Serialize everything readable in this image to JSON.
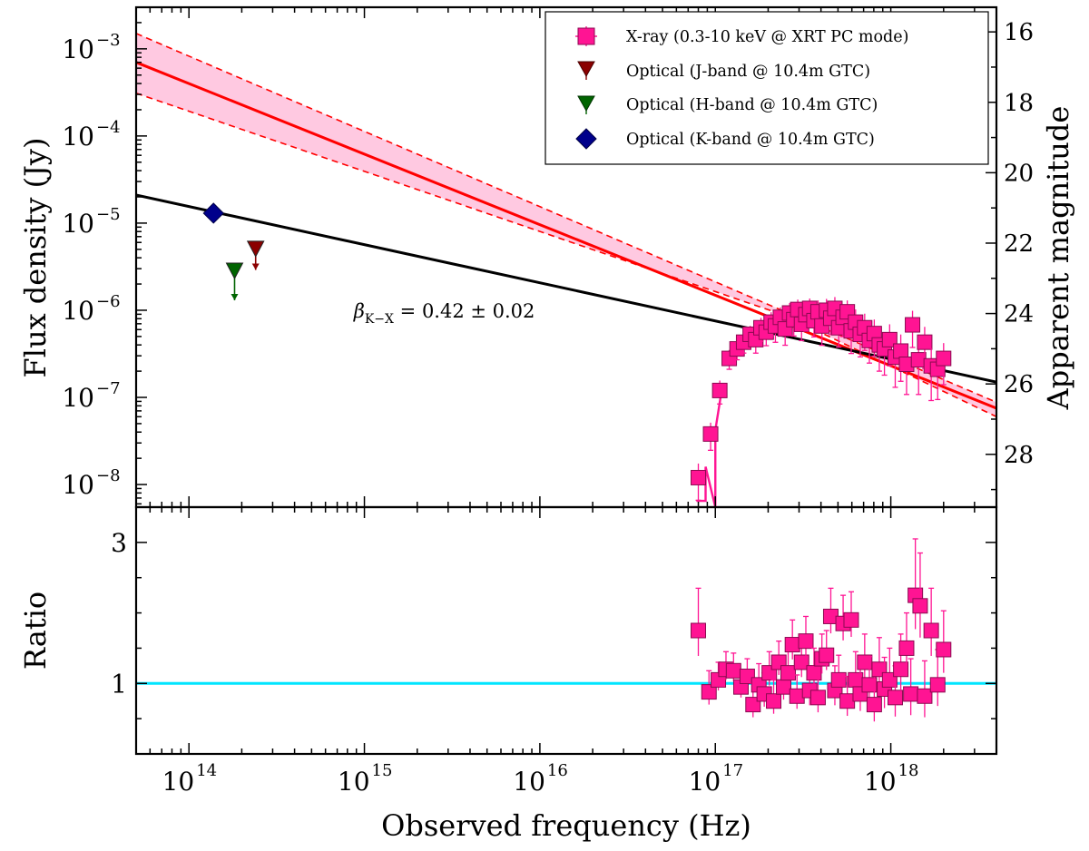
{
  "chart_data": [
    {
      "type": "scatter",
      "panel": "top",
      "xscale": "log",
      "yscale": "log",
      "xlim": [
        50000000000000.0,
        4e+18
      ],
      "ylim": [
        5.5e-09,
        0.003
      ],
      "ylabel": "Flux density (Jy)",
      "ylabel_right": "Apparent magnitude",
      "ylim_right": [
        15.3,
        29.5
      ],
      "xticks": [
        {
          "label": "10",
          "exp": "14"
        },
        {
          "label": "10",
          "exp": "15"
        },
        {
          "label": "10",
          "exp": "16"
        },
        {
          "label": "10",
          "exp": "17"
        },
        {
          "label": "10",
          "exp": "18"
        }
      ],
      "yticks": [
        {
          "value": 0.001,
          "label": "10",
          "exp": "−3"
        },
        {
          "value": 0.0001,
          "label": "10",
          "exp": "−4"
        },
        {
          "value": 1e-05,
          "label": "10",
          "exp": "−5"
        },
        {
          "value": 1e-06,
          "label": "10",
          "exp": "−6"
        },
        {
          "value": 1e-07,
          "label": "10",
          "exp": "−7"
        },
        {
          "value": 1e-08,
          "label": "10",
          "exp": "−8"
        }
      ],
      "yticks_right": [
        "16",
        "18",
        "20",
        "22",
        "24",
        "26",
        "28"
      ],
      "annotation": {
        "text_sym": "β",
        "text_sub": "K−X",
        "text_rest": " = 0.42 ± 0.02",
        "x": 900000000000000.0,
        "y": 1e-06
      },
      "legend": {
        "position": "upper right",
        "entries": [
          {
            "label": "X-ray (0.3-10 keV @ XRT PC mode)",
            "marker": "square",
            "color": "#ff1493"
          },
          {
            "label": "Optical (J-band @ 10.4m GTC)",
            "marker": "triangle-down",
            "color": "#8b0000"
          },
          {
            "label": "Optical (H-band @ 10.4m GTC)",
            "marker": "triangle-down",
            "color": "#006400"
          },
          {
            "label": "Optical (K-band @ 10.4m GTC)",
            "marker": "diamond",
            "color": "#00008b"
          }
        ]
      },
      "series": [
        {
          "name": "X-ray power-law fit",
          "kind": "line",
          "color": "#ff0000",
          "x": [
            50000000000000.0,
            4e+18
          ],
          "y": [
            0.0007,
            7.5e-08
          ]
        },
        {
          "name": "X-ray fit upper bound",
          "kind": "dashed",
          "color": "#ff0000",
          "x": [
            50000000000000.0,
            2.5e+17,
            4e+18
          ],
          "y": [
            0.0015,
            9.6e-07,
            8.8e-08
          ]
        },
        {
          "name": "X-ray fit lower bound",
          "kind": "dashed",
          "color": "#ff0000",
          "x": [
            50000000000000.0,
            2.5e+17,
            4e+18
          ],
          "y": [
            0.00031,
            8.7e-07,
            6e-08
          ]
        },
        {
          "name": "K-X power law",
          "kind": "line",
          "color": "#000000",
          "x": [
            50000000000000.0,
            4e+18
          ],
          "y": [
            2.1e-05,
            1.5e-07
          ]
        },
        {
          "name": "X-ray (0.3-10 keV @ XRT PC mode)",
          "kind": "points",
          "marker": "square",
          "color": "#ff1493",
          "x": [
            8e+16,
            9.4e+16,
            1.06e+17,
            1.2e+17,
            1.33e+17,
            1.45e+17,
            1.58e+17,
            1.7e+17,
            1.82e+17,
            1.95e+17,
            2.08e+17,
            2.2e+17,
            2.35e+17,
            2.5e+17,
            2.65e+17,
            2.8e+17,
            2.95e+17,
            3.1e+17,
            3.28e+17,
            3.45e+17,
            3.65e+17,
            3.85e+17,
            4.05e+17,
            4.3e+17,
            4.55e+17,
            4.8e+17,
            5.05e+17,
            5.35e+17,
            5.65e+17,
            5.95e+17,
            6.3e+17,
            6.7e+17,
            7.1e+17,
            7.55e+17,
            8.05e+17,
            8.6e+17,
            9.2e+17,
            9.85e+17,
            1.06e+18,
            1.14e+18,
            1.23e+18,
            1.33e+18,
            1.44e+18,
            1.56e+18,
            1.7e+18,
            1.85e+18,
            2e+18
          ],
          "y": [
            1.2e-08,
            3.8e-08,
            1.2e-07,
            2.8e-07,
            3.6e-07,
            4.3e-07,
            5.3e-07,
            4.6e-07,
            6.3e-07,
            5.6e-07,
            7.3e-07,
            6.6e-07,
            8.3e-07,
            6.1e-07,
            9.3e-07,
            7.8e-07,
            1.02e-06,
            6.9e-07,
            8.9e-07,
            1.05e-06,
            7.6e-07,
            9.6e-07,
            6.6e-07,
            1e-06,
            8.1e-07,
            1.05e-06,
            6.3e-07,
            8.3e-07,
            9.6e-07,
            5.8e-07,
            7.3e-07,
            5.3e-07,
            6.3e-07,
            4.5e-07,
            5.4e-07,
            4e-07,
            3.6e-07,
            4.6e-07,
            2.9e-07,
            3.4e-07,
            2.4e-07,
            6.8e-07,
            2.7e-07,
            4.3e-07,
            2.3e-07,
            2.1e-07,
            2.8e-07
          ],
          "yerr_frac": [
            0.45,
            0.35,
            0.3,
            0.25,
            0.25,
            0.25,
            0.25,
            0.3,
            0.3,
            0.3,
            0.3,
            0.35,
            0.3,
            0.35,
            0.3,
            0.35,
            0.3,
            0.35,
            0.35,
            0.3,
            0.35,
            0.35,
            0.4,
            0.35,
            0.35,
            0.35,
            0.4,
            0.4,
            0.35,
            0.45,
            0.4,
            0.45,
            0.45,
            0.45,
            0.45,
            0.5,
            0.5,
            0.5,
            0.55,
            0.55,
            0.55,
            0.45,
            0.6,
            0.5,
            0.6,
            0.55,
            0.5
          ]
        },
        {
          "name": "Optical (J-band @ 10.4m GTC)",
          "kind": "upper-limit",
          "marker": "triangle-down",
          "color": "#8b0000",
          "x": [
            240000000000000.0
          ],
          "y": [
            5e-06
          ],
          "y_arrow_end": [
            2.9e-06
          ]
        },
        {
          "name": "Optical (H-band @ 10.4m GTC)",
          "kind": "upper-limit",
          "marker": "triangle-down",
          "color": "#006400",
          "x": [
            182000000000000.0
          ],
          "y": [
            2.8e-06
          ],
          "y_arrow_end": [
            1.3e-06
          ]
        },
        {
          "name": "Optical (K-band @ 10.4m GTC)",
          "kind": "points",
          "marker": "diamond",
          "color": "#00008b",
          "x": [
            138000000000000.0
          ],
          "y": [
            1.3e-05
          ]
        }
      ]
    },
    {
      "type": "scatter",
      "panel": "bottom",
      "xscale": "log",
      "xlim": [
        50000000000000.0,
        4e+18
      ],
      "ylim": [
        0,
        3.5
      ],
      "xlabel": "Observed frequency (Hz)",
      "ylabel": "Ratio",
      "yticks": [
        "1",
        "3"
      ],
      "reference_line": {
        "y": 1,
        "color": "#00e5ff"
      },
      "series": [
        {
          "name": "X-ray ratio",
          "marker": "square",
          "color": "#ff1493",
          "x": [
            8e+16,
            9.2e+16,
            1.04e+17,
            1.15e+17,
            1.27e+17,
            1.4e+17,
            1.52e+17,
            1.64e+17,
            1.77e+17,
            1.9e+17,
            2.03e+17,
            2.15e+17,
            2.3e+17,
            2.45e+17,
            2.6e+17,
            2.75e+17,
            2.92e+17,
            3.1e+17,
            3.28e+17,
            3.45e+17,
            3.65e+17,
            3.85e+17,
            4.05e+17,
            4.3e+17,
            4.55e+17,
            4.8e+17,
            5.05e+17,
            5.35e+17,
            5.65e+17,
            5.95e+17,
            6.3e+17,
            6.7e+17,
            7.1e+17,
            7.55e+17,
            8.05e+17,
            8.6e+17,
            9.2e+17,
            9.85e+17,
            1.06e+18,
            1.14e+18,
            1.23e+18,
            1.3e+18,
            1.38e+18,
            1.47e+18,
            1.56e+18,
            1.7e+18,
            1.85e+18,
            2e+18
          ],
          "y": [
            1.75,
            0.88,
            1.05,
            1.2,
            1.18,
            0.95,
            1.1,
            0.7,
            0.98,
            0.85,
            1.15,
            0.75,
            1.3,
            0.95,
            1.15,
            1.55,
            0.82,
            1.3,
            1.6,
            0.9,
            1.15,
            0.8,
            1.35,
            1.4,
            1.95,
            0.9,
            1.05,
            1.85,
            0.75,
            1.9,
            1.05,
            0.85,
            1.3,
            0.98,
            0.7,
            1.2,
            0.92,
            1.05,
            0.8,
            1.2,
            1.5,
            0.85,
            2.25,
            2.1,
            0.82,
            1.75,
            0.98,
            1.48
          ],
          "yerr": [
            0.6,
            0.3,
            0.25,
            0.25,
            0.25,
            0.25,
            0.25,
            0.3,
            0.3,
            0.3,
            0.3,
            0.3,
            0.3,
            0.3,
            0.3,
            0.35,
            0.3,
            0.35,
            0.35,
            0.35,
            0.35,
            0.35,
            0.35,
            0.35,
            0.4,
            0.35,
            0.35,
            0.4,
            0.35,
            0.4,
            0.4,
            0.4,
            0.4,
            0.4,
            0.4,
            0.45,
            0.45,
            0.45,
            0.45,
            0.5,
            0.5,
            0.5,
            0.8,
            0.75,
            0.5,
            0.6,
            0.5,
            0.55
          ]
        }
      ]
    }
  ]
}
